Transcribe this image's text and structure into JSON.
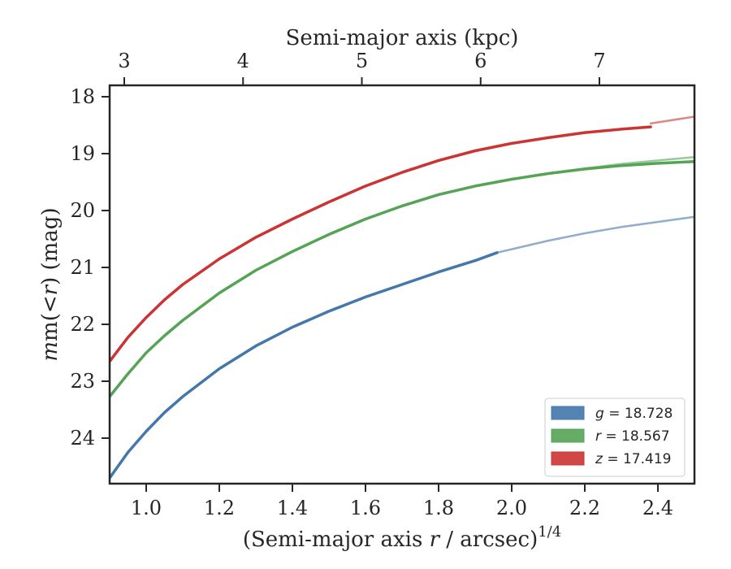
{
  "chart_data": {
    "type": "line",
    "xlabel": "(Semi-major axis ",
    "xlabel_var": "r",
    "xlabel_tail": " / arcsec)",
    "xlabel_sup": "1/4",
    "ylabel_prefix": "m(<",
    "ylabel_var": "r",
    "ylabel_suffix": ") (mag)",
    "top_xlabel": "Semi-major axis (kpc)",
    "xlim": [
      0.9,
      2.5
    ],
    "ylim": [
      24.8,
      17.8
    ],
    "y_inverted": true,
    "xticks": [
      1.0,
      1.2,
      1.4,
      1.6,
      1.8,
      2.0,
      2.2,
      2.4
    ],
    "xtick_labels": [
      "1.0",
      "1.2",
      "1.4",
      "1.6",
      "1.8",
      "2.0",
      "2.2",
      "2.4"
    ],
    "yticks": [
      18,
      19,
      20,
      21,
      22,
      23,
      24
    ],
    "ytick_labels": [
      "18",
      "19",
      "20",
      "21",
      "22",
      "23",
      "24"
    ],
    "top_xticks_kpc": [
      3,
      4,
      5,
      6,
      7
    ],
    "top_xtick_labels": [
      "3",
      "4",
      "5",
      "6",
      "7"
    ],
    "top_xtick_positions": [
      0.94,
      1.265,
      1.59,
      1.915,
      2.24
    ],
    "legend_placement": "lower-right",
    "series": [
      {
        "name": "g = 18.728",
        "band": "g",
        "value": "18.728",
        "color": "#4477aa",
        "x": [
          0.9,
          0.95,
          1.0,
          1.05,
          1.1,
          1.2,
          1.3,
          1.4,
          1.5,
          1.6,
          1.7,
          1.8,
          1.9,
          1.96
        ],
        "y": [
          24.7,
          24.25,
          23.88,
          23.55,
          23.27,
          22.78,
          22.38,
          22.05,
          21.77,
          21.52,
          21.3,
          21.08,
          20.88,
          20.74
        ],
        "model_x": [
          1.96,
          2.0,
          2.1,
          2.2,
          2.3,
          2.4,
          2.5
        ],
        "model_y": [
          20.74,
          20.68,
          20.53,
          20.4,
          20.29,
          20.2,
          20.11
        ]
      },
      {
        "name": "r = 18.567",
        "band": "r",
        "value": "18.567",
        "color": "#55a355",
        "x": [
          0.9,
          0.95,
          1.0,
          1.05,
          1.1,
          1.2,
          1.3,
          1.4,
          1.5,
          1.6,
          1.7,
          1.8,
          1.9,
          2.0,
          2.1,
          2.2,
          2.3,
          2.4,
          2.5
        ],
        "y": [
          23.27,
          22.87,
          22.5,
          22.2,
          21.93,
          21.45,
          21.05,
          20.72,
          20.42,
          20.15,
          19.92,
          19.72,
          19.57,
          19.45,
          19.35,
          19.27,
          19.21,
          19.17,
          19.14
        ],
        "model_x": [
          2.0,
          2.1,
          2.2,
          2.3,
          2.4,
          2.5
        ],
        "model_y": [
          19.45,
          19.35,
          19.26,
          19.18,
          19.12,
          19.06
        ]
      },
      {
        "name": "z = 17.419",
        "band": "z",
        "value": "17.419",
        "color": "#cc3333",
        "x": [
          0.9,
          0.95,
          1.0,
          1.05,
          1.1,
          1.2,
          1.3,
          1.4,
          1.5,
          1.6,
          1.7,
          1.8,
          1.9,
          2.0,
          2.1,
          2.2,
          2.3,
          2.38
        ],
        "y": [
          22.65,
          22.23,
          21.88,
          21.57,
          21.3,
          20.85,
          20.47,
          20.15,
          19.85,
          19.57,
          19.33,
          19.12,
          18.95,
          18.82,
          18.72,
          18.63,
          18.57,
          18.53
        ],
        "model_x": [
          2.38,
          2.45,
          2.5
        ],
        "model_y": [
          18.47,
          18.4,
          18.35
        ]
      }
    ]
  }
}
